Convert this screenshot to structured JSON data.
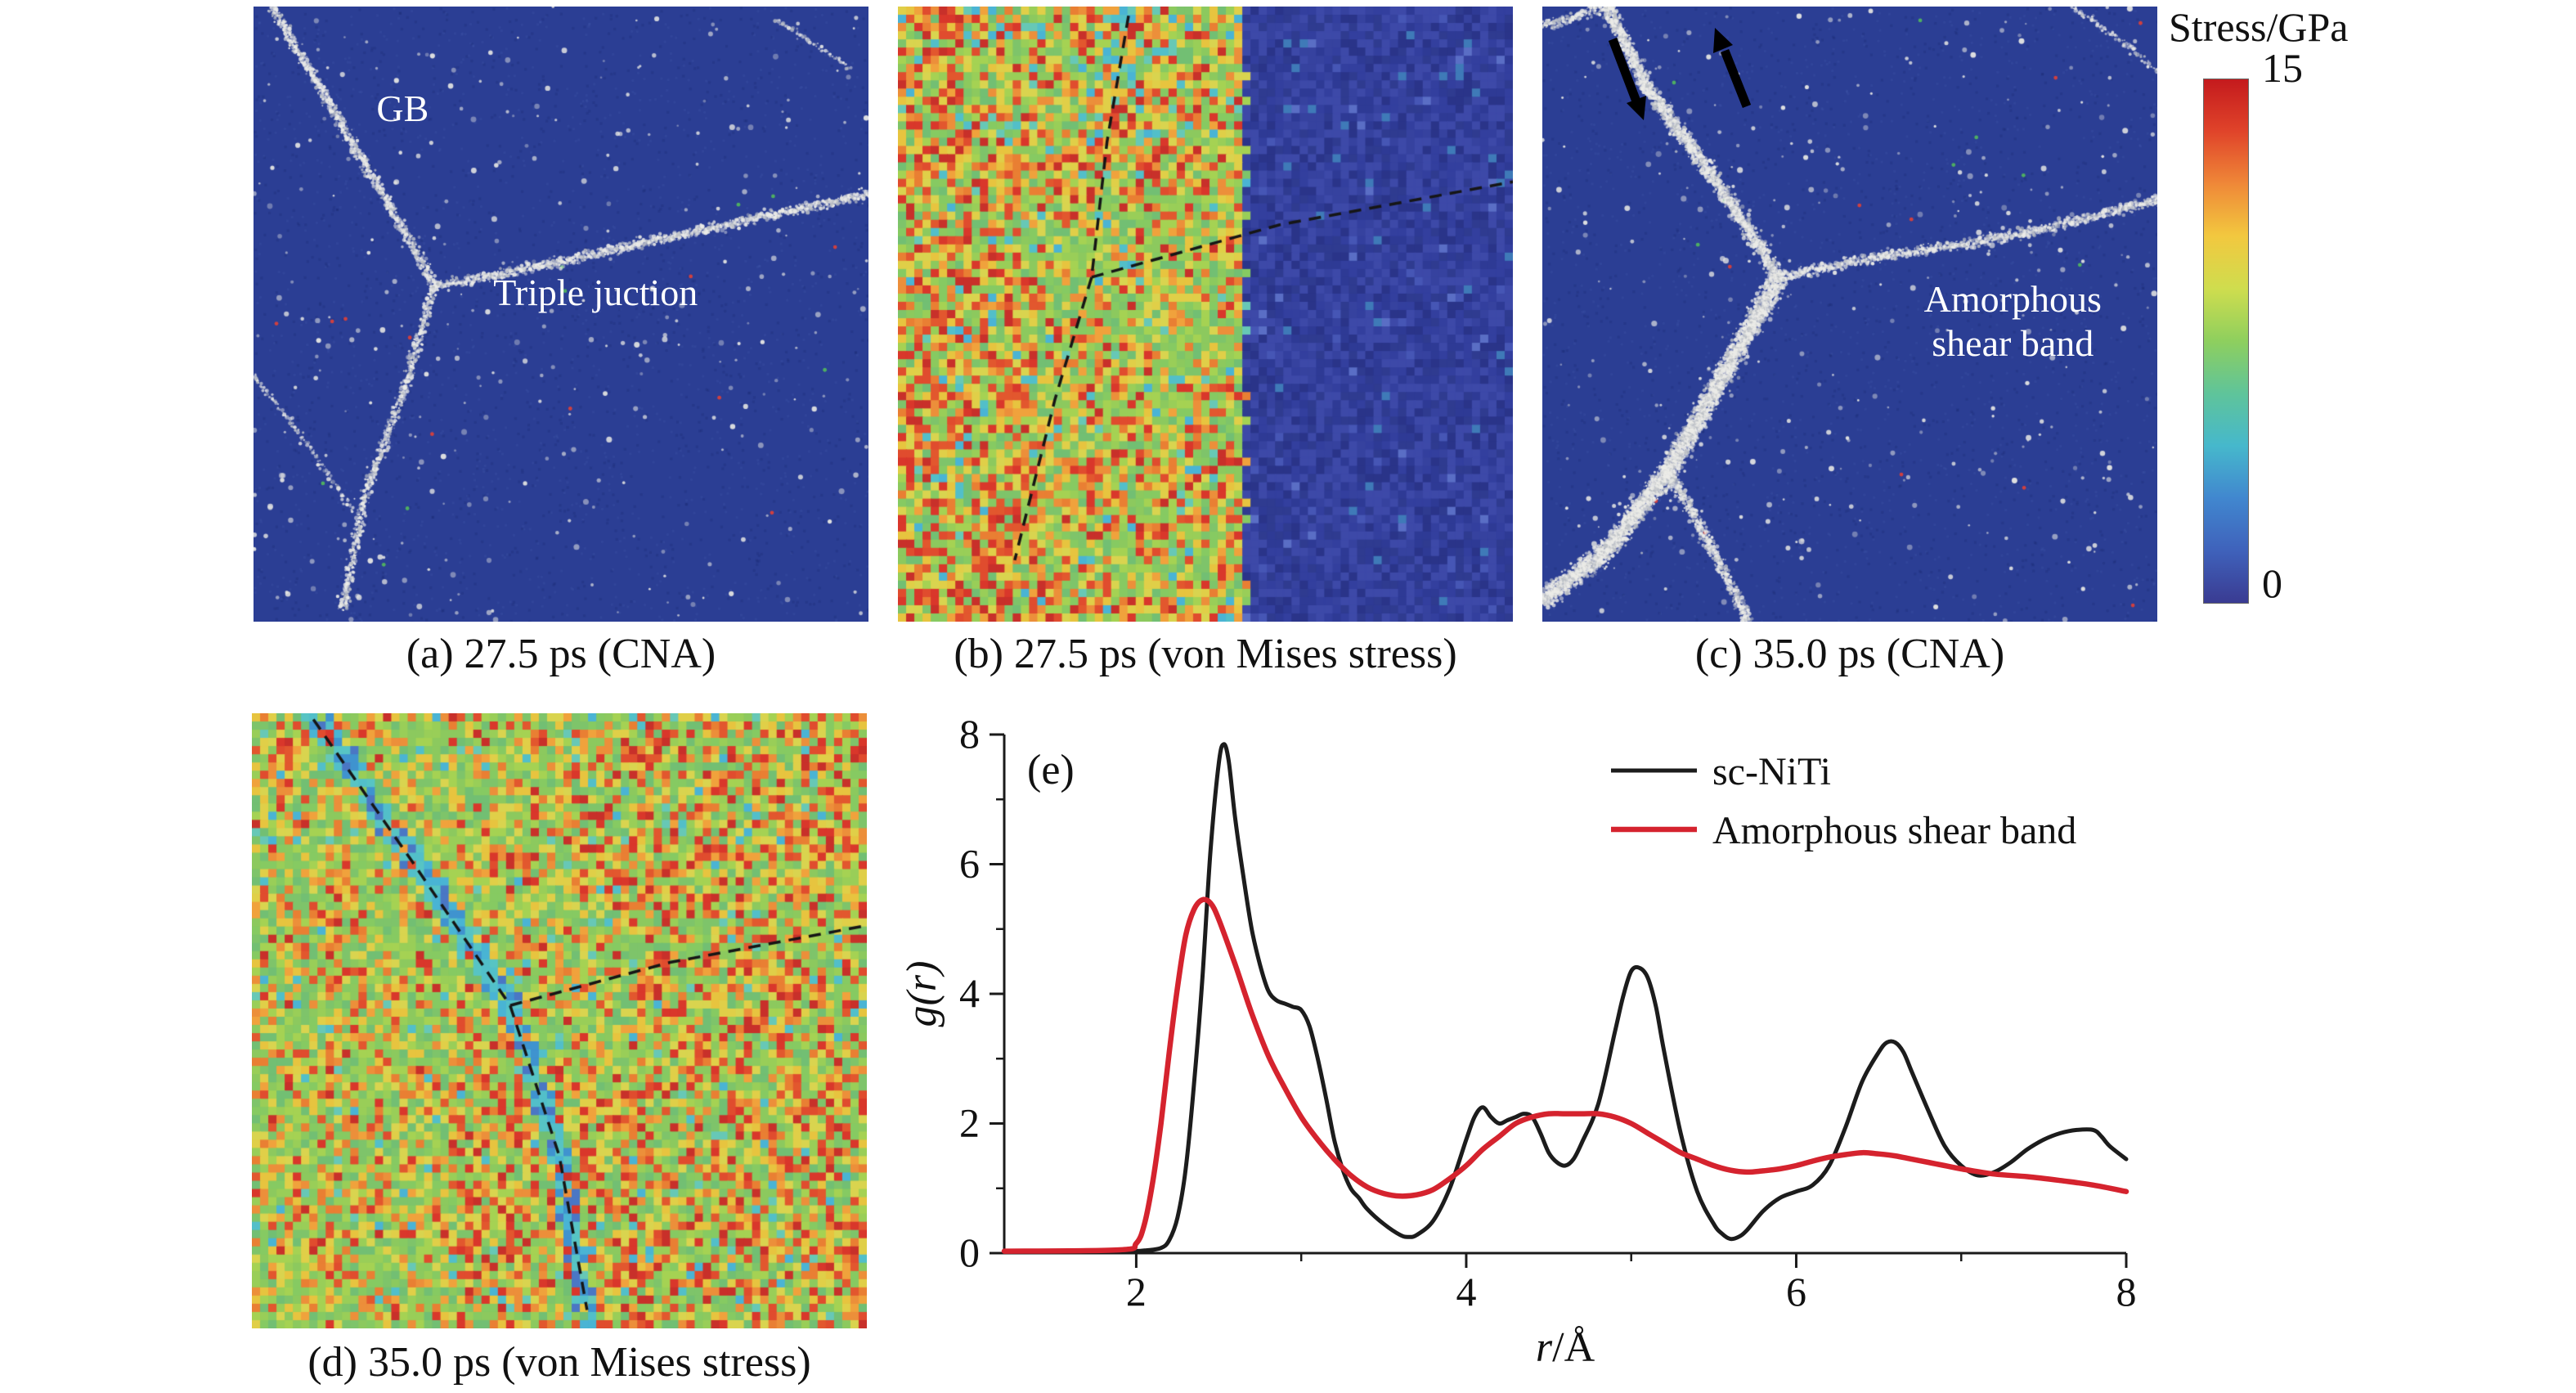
{
  "colorbar": {
    "title": "Stress/GPa",
    "max_label": "15",
    "min_label": "0",
    "gradient_colors": [
      "#c41a1d",
      "#e0442a",
      "#ef8838",
      "#f2c83f",
      "#cfdd4e",
      "#8ecf5e",
      "#5fc49a",
      "#46b8cc",
      "#4187cf",
      "#3f62bb",
      "#3a3b92"
    ]
  },
  "panels": {
    "a": {
      "caption": "(a) 27.5 ps (CNA)",
      "label_gb": "GB",
      "label_junction": "Triple juction"
    },
    "b": {
      "caption": "(b) 27.5 ps (von Mises stress)"
    },
    "c": {
      "caption": "(c) 35.0 ps (CNA)",
      "label_band": "Amorphous\nshear band"
    },
    "d": {
      "caption": "(d) 35.0 ps (von Mises stress)"
    }
  },
  "chart_data": {
    "type": "line",
    "panel_label": "(e)",
    "xlabel": "r/Å",
    "ylabel": "g(r)",
    "xlim": [
      1.2,
      8
    ],
    "ylim": [
      0,
      8
    ],
    "x_ticks": [
      2,
      4,
      6,
      8
    ],
    "x_minor_ticks": [
      3,
      5,
      7
    ],
    "y_ticks": [
      0,
      2,
      4,
      6,
      8
    ],
    "y_minor_ticks": [
      1,
      3,
      5,
      7
    ],
    "grid": false,
    "legend_position": "top-right",
    "series": [
      {
        "name": "sc-NiTi",
        "color": "#1c1c1c",
        "points": [
          [
            1.2,
            0.03
          ],
          [
            1.9,
            0.03
          ],
          [
            2.05,
            0.04
          ],
          [
            2.15,
            0.08
          ],
          [
            2.2,
            0.2
          ],
          [
            2.25,
            0.55
          ],
          [
            2.3,
            1.3
          ],
          [
            2.35,
            2.6
          ],
          [
            2.4,
            4.2
          ],
          [
            2.45,
            6.2
          ],
          [
            2.5,
            7.55
          ],
          [
            2.53,
            7.85
          ],
          [
            2.56,
            7.6
          ],
          [
            2.6,
            6.7
          ],
          [
            2.65,
            5.8
          ],
          [
            2.7,
            5.0
          ],
          [
            2.75,
            4.45
          ],
          [
            2.8,
            4.05
          ],
          [
            2.85,
            3.9
          ],
          [
            2.9,
            3.85
          ],
          [
            2.95,
            3.8
          ],
          [
            3.0,
            3.75
          ],
          [
            3.05,
            3.5
          ],
          [
            3.1,
            3.0
          ],
          [
            3.15,
            2.4
          ],
          [
            3.2,
            1.75
          ],
          [
            3.25,
            1.3
          ],
          [
            3.3,
            1.0
          ],
          [
            3.35,
            0.85
          ],
          [
            3.4,
            0.68
          ],
          [
            3.5,
            0.45
          ],
          [
            3.6,
            0.28
          ],
          [
            3.65,
            0.25
          ],
          [
            3.7,
            0.28
          ],
          [
            3.8,
            0.5
          ],
          [
            3.9,
            1.0
          ],
          [
            4.0,
            1.75
          ],
          [
            4.05,
            2.1
          ],
          [
            4.1,
            2.25
          ],
          [
            4.15,
            2.1
          ],
          [
            4.2,
            2.0
          ],
          [
            4.25,
            2.05
          ],
          [
            4.3,
            2.1
          ],
          [
            4.35,
            2.15
          ],
          [
            4.4,
            2.1
          ],
          [
            4.45,
            1.85
          ],
          [
            4.5,
            1.55
          ],
          [
            4.55,
            1.4
          ],
          [
            4.6,
            1.35
          ],
          [
            4.65,
            1.45
          ],
          [
            4.7,
            1.7
          ],
          [
            4.8,
            2.3
          ],
          [
            4.9,
            3.4
          ],
          [
            4.95,
            3.95
          ],
          [
            5.0,
            4.35
          ],
          [
            5.05,
            4.4
          ],
          [
            5.1,
            4.25
          ],
          [
            5.15,
            3.8
          ],
          [
            5.2,
            3.1
          ],
          [
            5.3,
            1.85
          ],
          [
            5.4,
            0.95
          ],
          [
            5.5,
            0.45
          ],
          [
            5.55,
            0.3
          ],
          [
            5.6,
            0.22
          ],
          [
            5.65,
            0.25
          ],
          [
            5.7,
            0.35
          ],
          [
            5.8,
            0.65
          ],
          [
            5.9,
            0.85
          ],
          [
            6.0,
            0.95
          ],
          [
            6.1,
            1.05
          ],
          [
            6.2,
            1.35
          ],
          [
            6.3,
            1.95
          ],
          [
            6.4,
            2.65
          ],
          [
            6.5,
            3.1
          ],
          [
            6.55,
            3.25
          ],
          [
            6.6,
            3.25
          ],
          [
            6.65,
            3.1
          ],
          [
            6.7,
            2.8
          ],
          [
            6.8,
            2.2
          ],
          [
            6.9,
            1.65
          ],
          [
            7.0,
            1.35
          ],
          [
            7.1,
            1.2
          ],
          [
            7.2,
            1.25
          ],
          [
            7.3,
            1.4
          ],
          [
            7.4,
            1.6
          ],
          [
            7.5,
            1.75
          ],
          [
            7.6,
            1.85
          ],
          [
            7.7,
            1.9
          ],
          [
            7.8,
            1.9
          ],
          [
            7.85,
            1.8
          ],
          [
            7.9,
            1.65
          ],
          [
            8.0,
            1.45
          ]
        ]
      },
      {
        "name": "Amorphous shear band",
        "color": "#d5232e",
        "points": [
          [
            1.2,
            0.03
          ],
          [
            1.9,
            0.05
          ],
          [
            2.0,
            0.15
          ],
          [
            2.05,
            0.45
          ],
          [
            2.1,
            1.1
          ],
          [
            2.15,
            2.0
          ],
          [
            2.2,
            3.1
          ],
          [
            2.25,
            4.1
          ],
          [
            2.3,
            4.9
          ],
          [
            2.35,
            5.3
          ],
          [
            2.4,
            5.45
          ],
          [
            2.45,
            5.4
          ],
          [
            2.5,
            5.15
          ],
          [
            2.6,
            4.45
          ],
          [
            2.7,
            3.7
          ],
          [
            2.8,
            3.05
          ],
          [
            2.9,
            2.55
          ],
          [
            3.0,
            2.1
          ],
          [
            3.1,
            1.75
          ],
          [
            3.2,
            1.45
          ],
          [
            3.3,
            1.2
          ],
          [
            3.4,
            1.02
          ],
          [
            3.5,
            0.92
          ],
          [
            3.6,
            0.88
          ],
          [
            3.7,
            0.9
          ],
          [
            3.8,
            0.98
          ],
          [
            3.9,
            1.15
          ],
          [
            4.0,
            1.35
          ],
          [
            4.1,
            1.6
          ],
          [
            4.2,
            1.8
          ],
          [
            4.3,
            2.0
          ],
          [
            4.4,
            2.1
          ],
          [
            4.5,
            2.15
          ],
          [
            4.6,
            2.15
          ],
          [
            4.7,
            2.15
          ],
          [
            4.8,
            2.15
          ],
          [
            4.9,
            2.1
          ],
          [
            5.0,
            2.0
          ],
          [
            5.1,
            1.85
          ],
          [
            5.2,
            1.7
          ],
          [
            5.3,
            1.55
          ],
          [
            5.4,
            1.45
          ],
          [
            5.5,
            1.35
          ],
          [
            5.6,
            1.28
          ],
          [
            5.7,
            1.25
          ],
          [
            5.8,
            1.27
          ],
          [
            5.9,
            1.3
          ],
          [
            6.0,
            1.35
          ],
          [
            6.1,
            1.42
          ],
          [
            6.2,
            1.48
          ],
          [
            6.3,
            1.52
          ],
          [
            6.4,
            1.55
          ],
          [
            6.5,
            1.53
          ],
          [
            6.6,
            1.5
          ],
          [
            6.7,
            1.45
          ],
          [
            6.8,
            1.4
          ],
          [
            6.9,
            1.35
          ],
          [
            7.0,
            1.3
          ],
          [
            7.2,
            1.22
          ],
          [
            7.4,
            1.18
          ],
          [
            7.6,
            1.12
          ],
          [
            7.8,
            1.05
          ],
          [
            8.0,
            0.95
          ]
        ]
      }
    ]
  }
}
